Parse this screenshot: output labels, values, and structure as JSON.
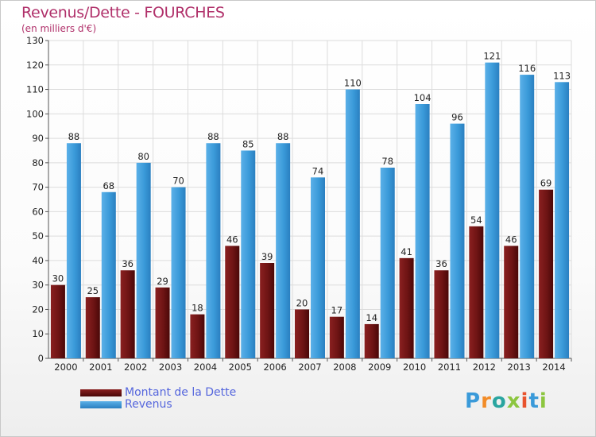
{
  "chart_data": {
    "type": "bar",
    "title": "Revenus/Dette - FOURCHES",
    "subtitle": "(en milliers d'€)",
    "categories": [
      "2000",
      "2001",
      "2002",
      "2003",
      "2004",
      "2005",
      "2006",
      "2007",
      "2008",
      "2009",
      "2010",
      "2011",
      "2012",
      "2013",
      "2014"
    ],
    "series": [
      {
        "name": "Montant de la Dette",
        "color": "#7a1818",
        "values": [
          30,
          25,
          36,
          29,
          18,
          46,
          39,
          20,
          17,
          14,
          41,
          36,
          54,
          46,
          69
        ]
      },
      {
        "name": "Revenus",
        "color": "#3a9ad9",
        "values": [
          88,
          68,
          80,
          70,
          88,
          85,
          88,
          74,
          110,
          78,
          104,
          96,
          121,
          116,
          113
        ]
      }
    ],
    "ylim": [
      0,
      130
    ],
    "yticks": [
      0,
      10,
      20,
      30,
      40,
      50,
      60,
      70,
      80,
      90,
      100,
      110,
      120,
      130
    ],
    "grid": true,
    "legend_position": "bottom-left"
  },
  "legend": {
    "items": [
      {
        "label": "Montant de la Dette",
        "color": "#6b1010"
      },
      {
        "label": "Revenus",
        "color": "#3a9ad9"
      }
    ]
  },
  "logo": {
    "text": "Proxiti"
  }
}
